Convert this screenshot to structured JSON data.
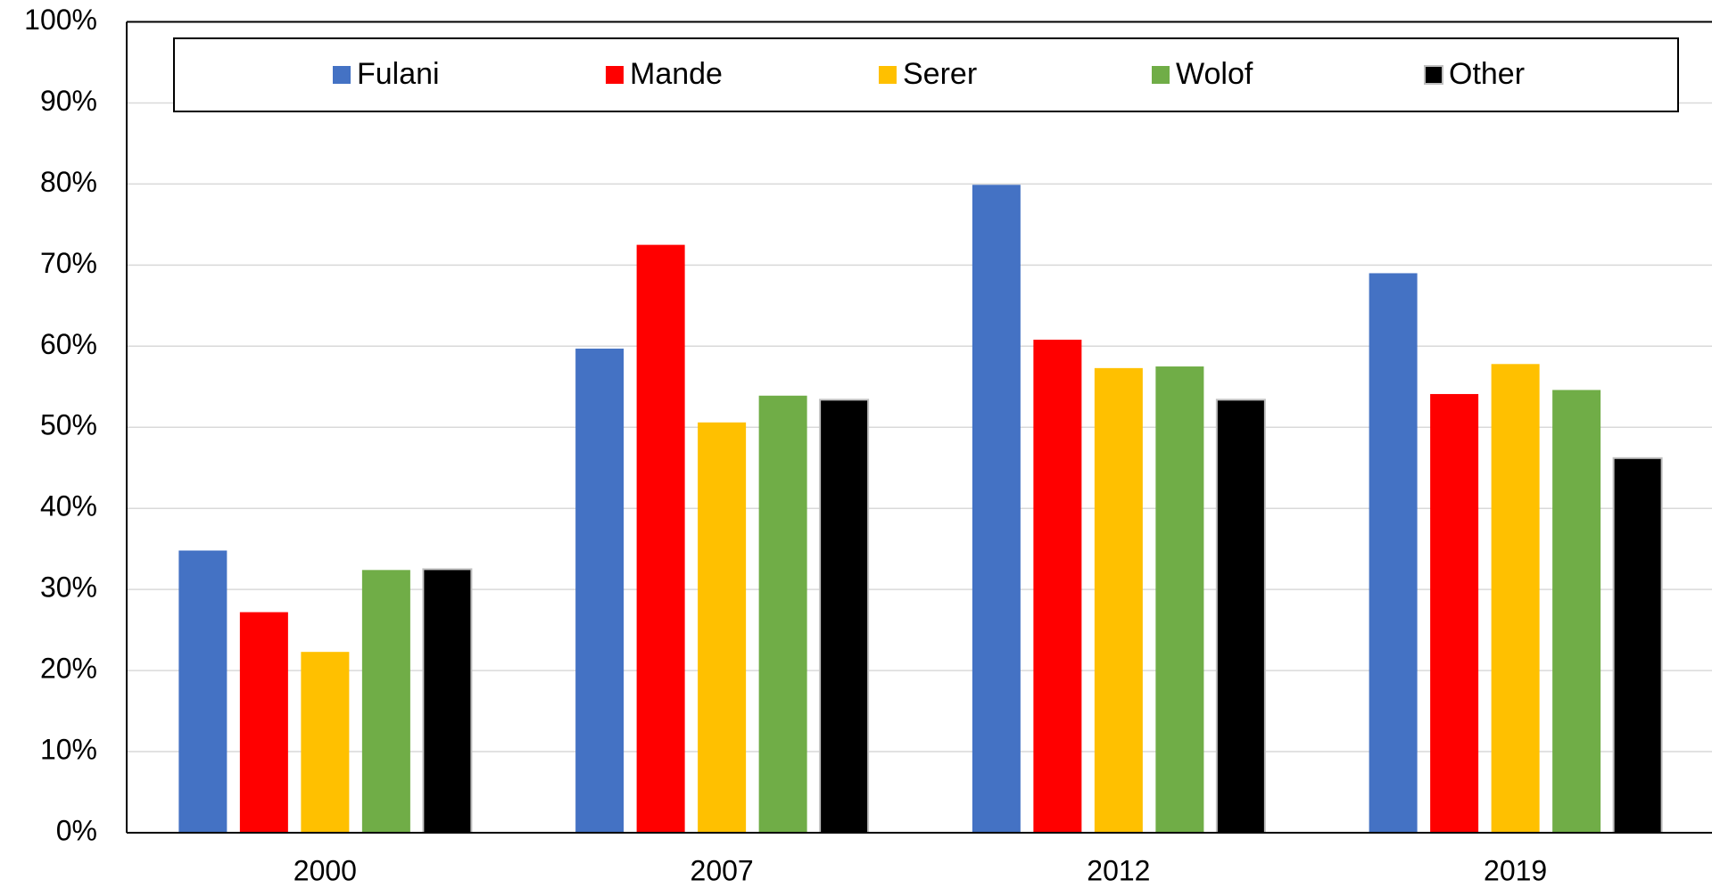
{
  "chart_data": {
    "type": "bar",
    "categories": [
      "2000",
      "2007",
      "2012",
      "2019"
    ],
    "series": [
      {
        "name": "Fulani",
        "color": "#4472c4",
        "values": [
          34.8,
          59.7,
          79.9,
          69.0
        ]
      },
      {
        "name": "Mande",
        "color": "#ff0000",
        "values": [
          27.2,
          72.5,
          60.8,
          54.1
        ]
      },
      {
        "name": "Serer",
        "color": "#ffc000",
        "values": [
          22.3,
          50.6,
          57.3,
          57.8
        ]
      },
      {
        "name": "Wolof",
        "color": "#70ad47",
        "values": [
          32.4,
          53.9,
          57.5,
          54.6
        ]
      },
      {
        "name": "Other",
        "color": "#000000",
        "values": [
          32.5,
          53.4,
          53.4,
          46.2
        ]
      }
    ],
    "ylim": [
      0,
      100
    ],
    "yticks": [
      {
        "value": 0,
        "label": "0%"
      },
      {
        "value": 10,
        "label": "10%"
      },
      {
        "value": 20,
        "label": "20%"
      },
      {
        "value": 30,
        "label": "30%"
      },
      {
        "value": 40,
        "label": "40%"
      },
      {
        "value": 50,
        "label": "50%"
      },
      {
        "value": 60,
        "label": "60%"
      },
      {
        "value": 70,
        "label": "70%"
      },
      {
        "value": 80,
        "label": "80%"
      },
      {
        "value": 90,
        "label": "90%"
      },
      {
        "value": 100,
        "label": "100%"
      }
    ],
    "grid": true,
    "legend": "top"
  }
}
